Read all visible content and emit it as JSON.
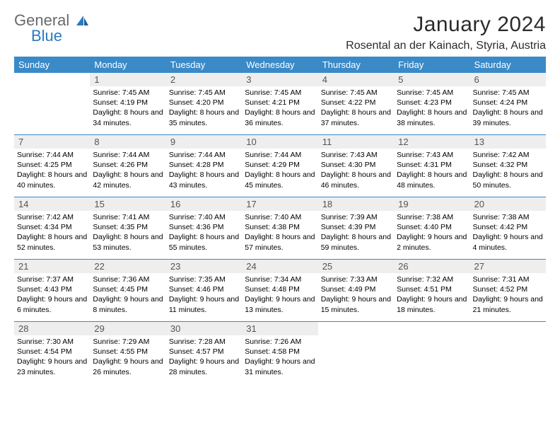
{
  "logo": {
    "text1": "General",
    "text2": "Blue"
  },
  "title": "January 2024",
  "location": "Rosental an der Kainach, Styria, Austria",
  "colors": {
    "header_bg": "#3a8ac8",
    "header_text": "#ffffff",
    "daynum_bg": "#eeeeee",
    "daynum_text": "#555555",
    "rule": "#3a8ac8",
    "logo_gray": "#6a6a6a",
    "logo_blue": "#2a7ac0"
  },
  "weekdays": [
    "Sunday",
    "Monday",
    "Tuesday",
    "Wednesday",
    "Thursday",
    "Friday",
    "Saturday"
  ],
  "weeks": [
    [
      {
        "n": "",
        "sr": "",
        "ss": "",
        "dl": ""
      },
      {
        "n": "1",
        "sr": "Sunrise: 7:45 AM",
        "ss": "Sunset: 4:19 PM",
        "dl": "Daylight: 8 hours and 34 minutes."
      },
      {
        "n": "2",
        "sr": "Sunrise: 7:45 AM",
        "ss": "Sunset: 4:20 PM",
        "dl": "Daylight: 8 hours and 35 minutes."
      },
      {
        "n": "3",
        "sr": "Sunrise: 7:45 AM",
        "ss": "Sunset: 4:21 PM",
        "dl": "Daylight: 8 hours and 36 minutes."
      },
      {
        "n": "4",
        "sr": "Sunrise: 7:45 AM",
        "ss": "Sunset: 4:22 PM",
        "dl": "Daylight: 8 hours and 37 minutes."
      },
      {
        "n": "5",
        "sr": "Sunrise: 7:45 AM",
        "ss": "Sunset: 4:23 PM",
        "dl": "Daylight: 8 hours and 38 minutes."
      },
      {
        "n": "6",
        "sr": "Sunrise: 7:45 AM",
        "ss": "Sunset: 4:24 PM",
        "dl": "Daylight: 8 hours and 39 minutes."
      }
    ],
    [
      {
        "n": "7",
        "sr": "Sunrise: 7:44 AM",
        "ss": "Sunset: 4:25 PM",
        "dl": "Daylight: 8 hours and 40 minutes."
      },
      {
        "n": "8",
        "sr": "Sunrise: 7:44 AM",
        "ss": "Sunset: 4:26 PM",
        "dl": "Daylight: 8 hours and 42 minutes."
      },
      {
        "n": "9",
        "sr": "Sunrise: 7:44 AM",
        "ss": "Sunset: 4:28 PM",
        "dl": "Daylight: 8 hours and 43 minutes."
      },
      {
        "n": "10",
        "sr": "Sunrise: 7:44 AM",
        "ss": "Sunset: 4:29 PM",
        "dl": "Daylight: 8 hours and 45 minutes."
      },
      {
        "n": "11",
        "sr": "Sunrise: 7:43 AM",
        "ss": "Sunset: 4:30 PM",
        "dl": "Daylight: 8 hours and 46 minutes."
      },
      {
        "n": "12",
        "sr": "Sunrise: 7:43 AM",
        "ss": "Sunset: 4:31 PM",
        "dl": "Daylight: 8 hours and 48 minutes."
      },
      {
        "n": "13",
        "sr": "Sunrise: 7:42 AM",
        "ss": "Sunset: 4:32 PM",
        "dl": "Daylight: 8 hours and 50 minutes."
      }
    ],
    [
      {
        "n": "14",
        "sr": "Sunrise: 7:42 AM",
        "ss": "Sunset: 4:34 PM",
        "dl": "Daylight: 8 hours and 52 minutes."
      },
      {
        "n": "15",
        "sr": "Sunrise: 7:41 AM",
        "ss": "Sunset: 4:35 PM",
        "dl": "Daylight: 8 hours and 53 minutes."
      },
      {
        "n": "16",
        "sr": "Sunrise: 7:40 AM",
        "ss": "Sunset: 4:36 PM",
        "dl": "Daylight: 8 hours and 55 minutes."
      },
      {
        "n": "17",
        "sr": "Sunrise: 7:40 AM",
        "ss": "Sunset: 4:38 PM",
        "dl": "Daylight: 8 hours and 57 minutes."
      },
      {
        "n": "18",
        "sr": "Sunrise: 7:39 AM",
        "ss": "Sunset: 4:39 PM",
        "dl": "Daylight: 8 hours and 59 minutes."
      },
      {
        "n": "19",
        "sr": "Sunrise: 7:38 AM",
        "ss": "Sunset: 4:40 PM",
        "dl": "Daylight: 9 hours and 2 minutes."
      },
      {
        "n": "20",
        "sr": "Sunrise: 7:38 AM",
        "ss": "Sunset: 4:42 PM",
        "dl": "Daylight: 9 hours and 4 minutes."
      }
    ],
    [
      {
        "n": "21",
        "sr": "Sunrise: 7:37 AM",
        "ss": "Sunset: 4:43 PM",
        "dl": "Daylight: 9 hours and 6 minutes."
      },
      {
        "n": "22",
        "sr": "Sunrise: 7:36 AM",
        "ss": "Sunset: 4:45 PM",
        "dl": "Daylight: 9 hours and 8 minutes."
      },
      {
        "n": "23",
        "sr": "Sunrise: 7:35 AM",
        "ss": "Sunset: 4:46 PM",
        "dl": "Daylight: 9 hours and 11 minutes."
      },
      {
        "n": "24",
        "sr": "Sunrise: 7:34 AM",
        "ss": "Sunset: 4:48 PM",
        "dl": "Daylight: 9 hours and 13 minutes."
      },
      {
        "n": "25",
        "sr": "Sunrise: 7:33 AM",
        "ss": "Sunset: 4:49 PM",
        "dl": "Daylight: 9 hours and 15 minutes."
      },
      {
        "n": "26",
        "sr": "Sunrise: 7:32 AM",
        "ss": "Sunset: 4:51 PM",
        "dl": "Daylight: 9 hours and 18 minutes."
      },
      {
        "n": "27",
        "sr": "Sunrise: 7:31 AM",
        "ss": "Sunset: 4:52 PM",
        "dl": "Daylight: 9 hours and 21 minutes."
      }
    ],
    [
      {
        "n": "28",
        "sr": "Sunrise: 7:30 AM",
        "ss": "Sunset: 4:54 PM",
        "dl": "Daylight: 9 hours and 23 minutes."
      },
      {
        "n": "29",
        "sr": "Sunrise: 7:29 AM",
        "ss": "Sunset: 4:55 PM",
        "dl": "Daylight: 9 hours and 26 minutes."
      },
      {
        "n": "30",
        "sr": "Sunrise: 7:28 AM",
        "ss": "Sunset: 4:57 PM",
        "dl": "Daylight: 9 hours and 28 minutes."
      },
      {
        "n": "31",
        "sr": "Sunrise: 7:26 AM",
        "ss": "Sunset: 4:58 PM",
        "dl": "Daylight: 9 hours and 31 minutes."
      },
      {
        "n": "",
        "sr": "",
        "ss": "",
        "dl": ""
      },
      {
        "n": "",
        "sr": "",
        "ss": "",
        "dl": ""
      },
      {
        "n": "",
        "sr": "",
        "ss": "",
        "dl": ""
      }
    ]
  ]
}
